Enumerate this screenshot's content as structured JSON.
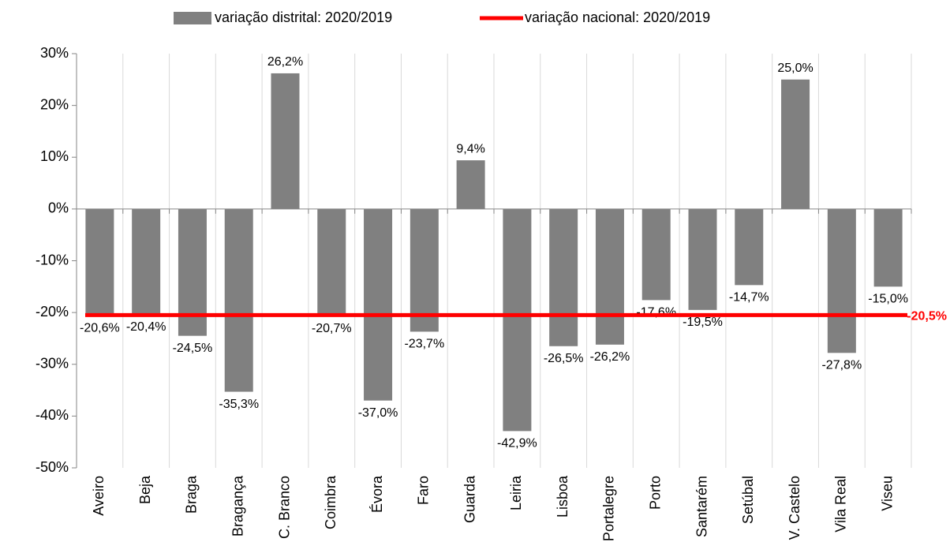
{
  "chart_data": {
    "type": "bar",
    "categories": [
      "Aveiro",
      "Beja",
      "Braga",
      "Bragança",
      "C. Branco",
      "Coimbra",
      "Évora",
      "Faro",
      "Guarda",
      "Leiria",
      "Lisboa",
      "Portalegre",
      "Porto",
      "Santarém",
      "Setúbal",
      "V. Castelo",
      "Vila Real",
      "Viseu"
    ],
    "series": [
      {
        "name": "variação distrital: 2020/2019",
        "color": "#808080",
        "values": [
          -20.6,
          -20.4,
          -24.5,
          -35.3,
          26.2,
          -20.7,
          -37.0,
          -23.7,
          9.4,
          -42.9,
          -26.5,
          -26.2,
          -17.6,
          -19.5,
          -14.7,
          25.0,
          -27.8,
          -15.0
        ],
        "value_labels": [
          "-20,6%",
          "-20,4%",
          "-24,5%",
          "-35,3%",
          "26,2%",
          "-20,7%",
          "-37,0%",
          "-23,7%",
          "9,4%",
          "-42,9%",
          "-26,5%",
          "-26,2%",
          "-17,6%",
          "-19,5%",
          "-14,7%",
          "25,0%",
          "-27,8%",
          "-15,0%"
        ]
      }
    ],
    "reference_line": {
      "name": "variação nacional: 2020/2019",
      "color": "#ff0000",
      "value": -20.5,
      "value_label": "-20,5%"
    },
    "ylim": [
      -50,
      30
    ],
    "yticks": [
      {
        "value": -50,
        "label": "-50%"
      },
      {
        "value": -40,
        "label": "-40%"
      },
      {
        "value": -30,
        "label": "-30%"
      },
      {
        "value": -20,
        "label": "-20%"
      },
      {
        "value": -10,
        "label": "-10%"
      },
      {
        "value": 0,
        "label": "0%"
      },
      {
        "value": 10,
        "label": "10%"
      },
      {
        "value": 20,
        "label": "20%"
      },
      {
        "value": 30,
        "label": "30%"
      }
    ],
    "grid": false
  }
}
